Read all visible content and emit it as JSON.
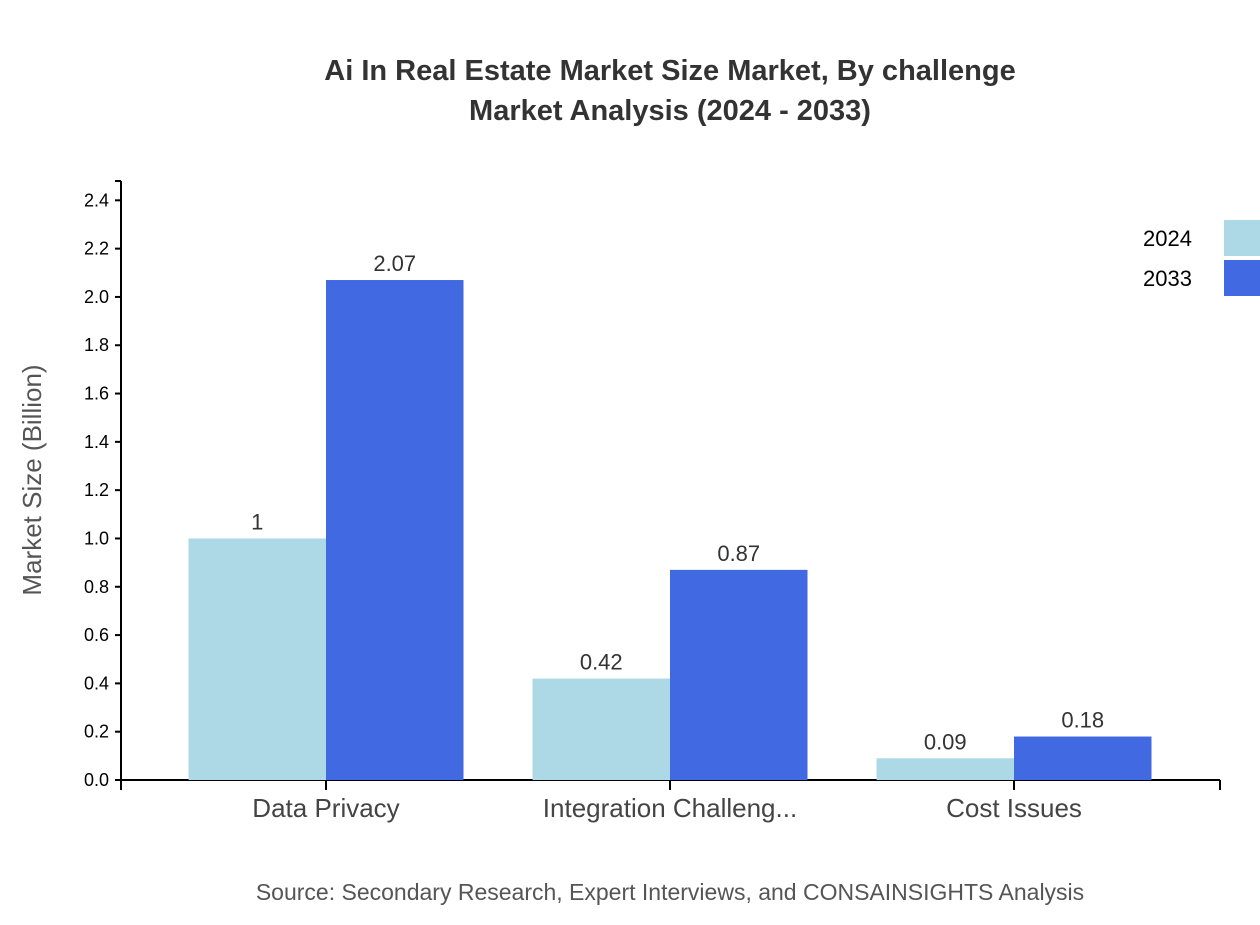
{
  "chart_data": {
    "type": "bar",
    "title_line1": "Ai In Real Estate Market Size Market, By challenge",
    "title_line2": "Market Analysis (2024 - 2033)",
    "xlabel": "",
    "ylabel": "Market Size (Billion)",
    "ylim": [
      0,
      2.48
    ],
    "yticks": [
      "0.0",
      "0.2",
      "0.4",
      "0.6",
      "0.8",
      "1.0",
      "1.2",
      "1.4",
      "1.6",
      "1.8",
      "2.0",
      "2.2",
      "2.4"
    ],
    "categories": [
      "Data Privacy",
      "Integration Challeng...",
      "Cost Issues"
    ],
    "series": [
      {
        "name": "2024",
        "color": "#add8e6",
        "values": [
          1,
          0.42,
          0.09
        ],
        "labels": [
          "1",
          "0.42",
          "0.09"
        ]
      },
      {
        "name": "2033",
        "color": "#4169e1",
        "values": [
          2.07,
          0.87,
          0.18
        ],
        "labels": [
          "2.07",
          "0.87",
          "0.18"
        ]
      }
    ],
    "grid": false,
    "legend": "top-right",
    "source": "Source: Secondary Research, Expert Interviews, and CONSAINSIGHTS Analysis"
  }
}
